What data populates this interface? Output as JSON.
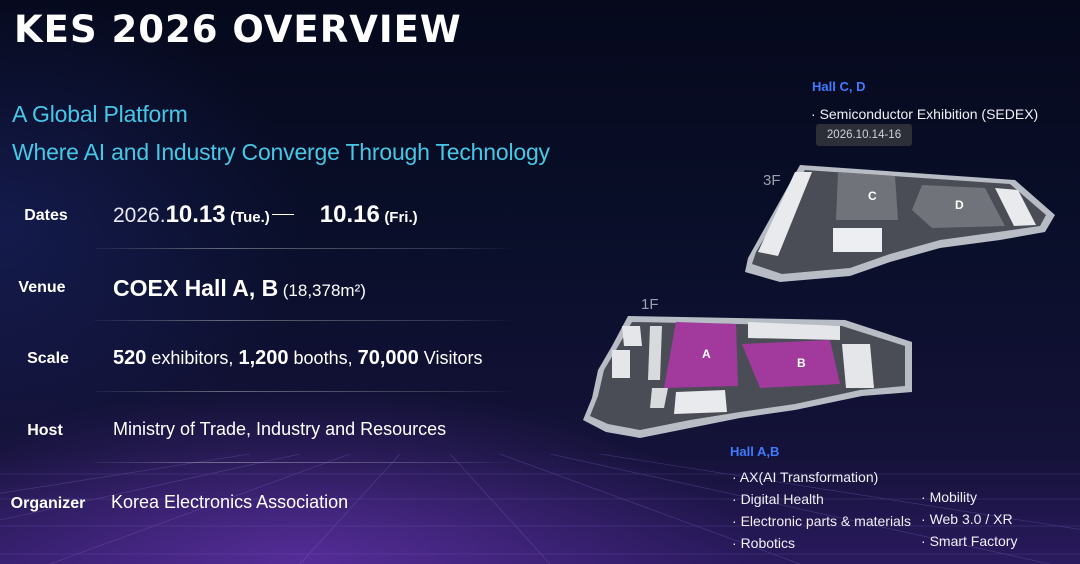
{
  "title": "KES 2026 OVERVIEW",
  "subtitle": {
    "line1": "A Global Platform",
    "line2": "Where AI and Industry Converge Through Technology"
  },
  "rows": {
    "dates": {
      "label": "Dates",
      "start_year": "2026.",
      "start_md": "10.13",
      "start_day": "(Tue.)",
      "end_md": "10.16",
      "end_day": "(Fri.)"
    },
    "venue": {
      "label": "Venue",
      "name": "COEX Hall A, B",
      "area": "(18,378m²)"
    },
    "scale": {
      "label": "Scale",
      "exhibitors_num": "520",
      "exhibitors_text": "exhibitors,",
      "booths_num": "1,200",
      "booths_text": "booths,",
      "visitors_num": "70,000",
      "visitors_text": "Visitors"
    },
    "host": {
      "label": "Host",
      "value": "Ministry of Trade, Industry and Resources"
    },
    "organizer": {
      "label": "Organizer",
      "value": "Korea Electronics Association"
    }
  },
  "map": {
    "hall_cd": {
      "title": "Hall C, D",
      "item": "Semiconductor Exhibition (SEDEX)",
      "date": "2026.10.14-16",
      "floor": "3F",
      "label_c": "C",
      "label_d": "D"
    },
    "hall_ab": {
      "title": "Hall A,B",
      "floor": "1F",
      "label_a": "A",
      "label_b": "B",
      "items_left": [
        "AX(AI Transformation)",
        "Digital Health",
        "Electronic parts & materials",
        "Robotics"
      ],
      "items_right": [
        "Mobility",
        "Web 3.0 / XR",
        "Smart Factory"
      ]
    }
  },
  "colors": {
    "accent": "#47c7e6",
    "hall_title": "#3e7bff",
    "hall_ab_fill": "#a23a9e"
  }
}
